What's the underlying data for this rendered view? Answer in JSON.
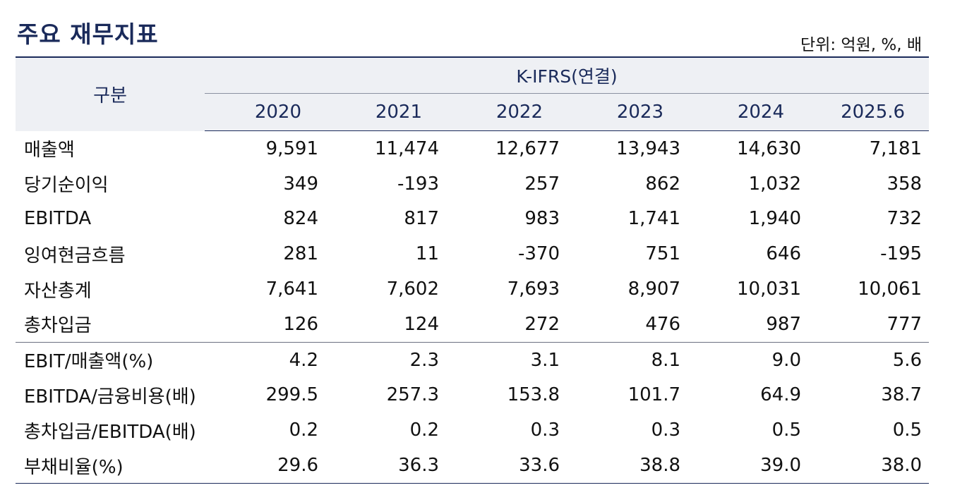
{
  "title": "주요 재무지표",
  "unit": "단위: 억원, %, 배",
  "table": {
    "label_header": "구분",
    "group_header": "K-IFRS(연결)",
    "years": [
      "2020",
      "2021",
      "2022",
      "2023",
      "2024",
      "2025.6"
    ],
    "rows": [
      {
        "label": "매출액",
        "values": [
          "9,591",
          "11,474",
          "12,677",
          "13,943",
          "14,630",
          "7,181"
        ]
      },
      {
        "label": "당기순이익",
        "values": [
          "349",
          "-193",
          "257",
          "862",
          "1,032",
          "358"
        ]
      },
      {
        "label": "EBITDA",
        "values": [
          "824",
          "817",
          "983",
          "1,741",
          "1,940",
          "732"
        ]
      },
      {
        "label": "잉여현금흐름",
        "values": [
          "281",
          "11",
          "-370",
          "751",
          "646",
          "-195"
        ]
      },
      {
        "label": "자산총계",
        "values": [
          "7,641",
          "7,602",
          "7,693",
          "8,907",
          "10,031",
          "10,061"
        ]
      },
      {
        "label": "총차입금",
        "values": [
          "126",
          "124",
          "272",
          "476",
          "987",
          "777"
        ]
      },
      {
        "label": "EBIT/매출액(%)",
        "values": [
          "4.2",
          "2.3",
          "3.1",
          "8.1",
          "9.0",
          "5.6"
        ]
      },
      {
        "label": "EBITDA/금융비용(배)",
        "values": [
          "299.5",
          "257.3",
          "153.8",
          "101.7",
          "64.9",
          "38.7"
        ]
      },
      {
        "label": "총차입금/EBITDA(배)",
        "values": [
          "0.2",
          "0.2",
          "0.3",
          "0.3",
          "0.5",
          "0.5"
        ]
      },
      {
        "label": "부채비율(%)",
        "values": [
          "29.6",
          "36.3",
          "33.6",
          "38.8",
          "39.0",
          "38.0"
        ]
      }
    ]
  }
}
